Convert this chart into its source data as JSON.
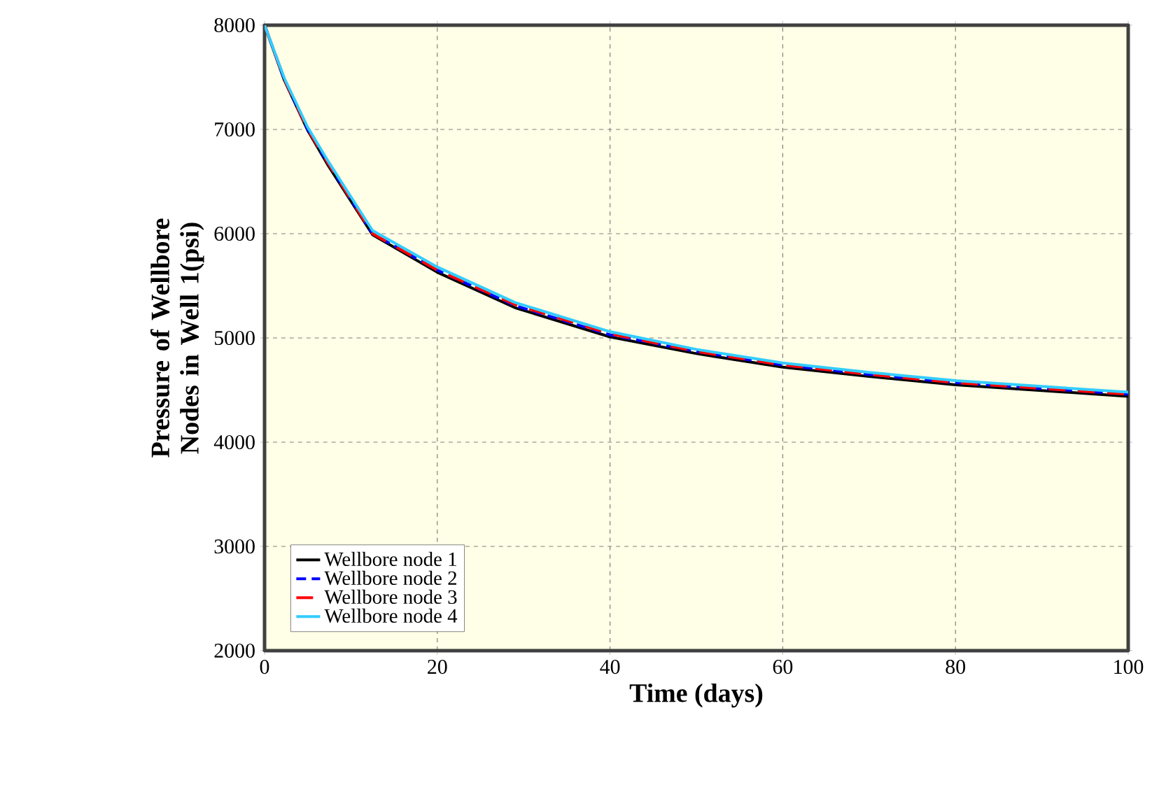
{
  "chart_data": {
    "type": "line",
    "xlabel": "Time  (days)",
    "ylabel": "Pressure  of Wellbore Nodes in Well 1(psi)",
    "x": [
      0,
      2.3,
      5,
      7.4,
      12.5,
      20,
      29,
      40,
      50,
      60,
      70,
      80,
      100
    ],
    "series": [
      {
        "name": "Wellbore node 1",
        "color": "#000000",
        "line_style": "solid",
        "values": [
          8000,
          7470,
          6990,
          6650,
          5990,
          5630,
          5290,
          5010,
          4850,
          4720,
          4630,
          4550,
          4440
        ]
      },
      {
        "name": "Wellbore node 2",
        "color": "#0000ff",
        "line_style": "dashed",
        "values": [
          8000,
          7480,
          7000,
          6670,
          6000,
          5650,
          5310,
          5030,
          4870,
          4740,
          4650,
          4570,
          4460
        ]
      },
      {
        "name": "Wellbore node 3",
        "color": "#ff0000",
        "line_style": "long dashed",
        "values": [
          8000,
          7480,
          7000,
          6670,
          6000,
          5650,
          5320,
          5040,
          4870,
          4740,
          4650,
          4570,
          4460
        ]
      },
      {
        "name": "Wellbore node 4",
        "color": "#33ccff",
        "line_style": "solid",
        "values": [
          8000,
          7490,
          7020,
          6690,
          6030,
          5680,
          5340,
          5060,
          4890,
          4760,
          4670,
          4590,
          4480
        ]
      }
    ],
    "xlim": [
      0,
      100
    ],
    "ylim": [
      2000,
      8000
    ],
    "xticks": [
      0,
      20,
      40,
      60,
      80,
      100
    ],
    "yticks": [
      2000,
      3000,
      4000,
      5000,
      6000,
      7000,
      8000
    ],
    "grid": true,
    "legend": "bottom left",
    "marker": "none"
  }
}
